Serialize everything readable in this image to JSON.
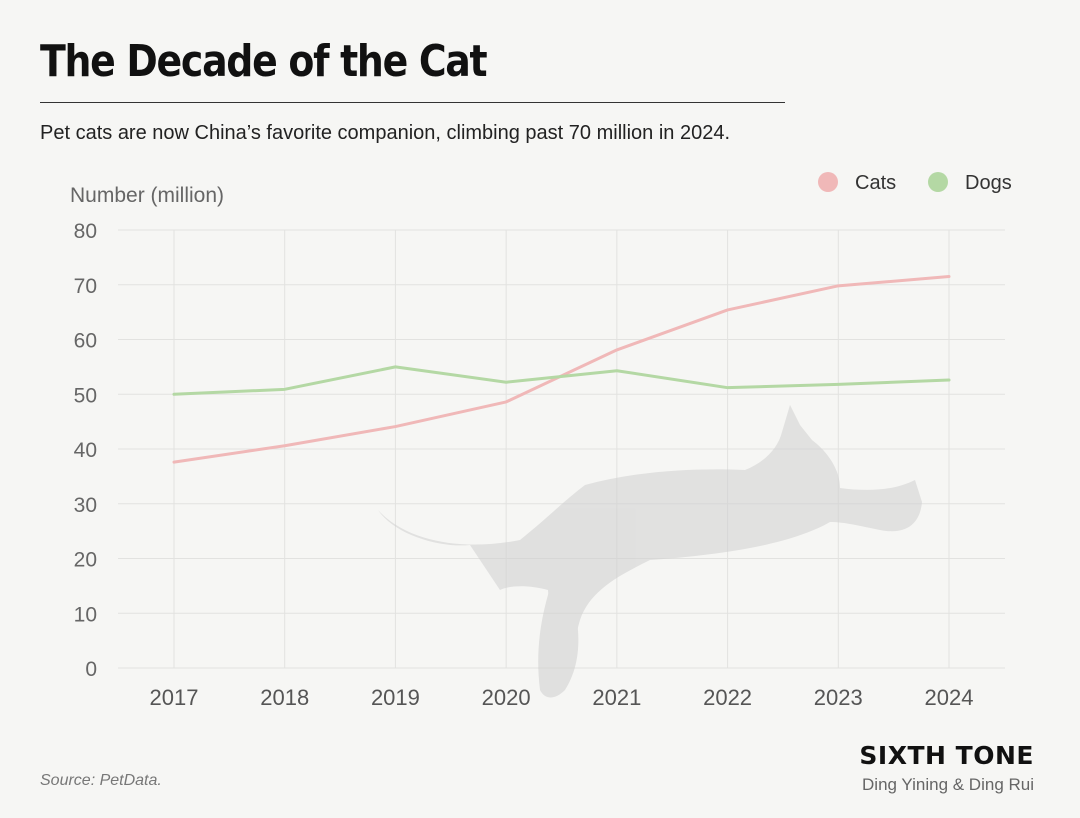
{
  "header": {
    "title": "The Decade of the Cat",
    "subtitle": "Pet cats are now China’s favorite companion, climbing past 70 million in 2024."
  },
  "footer": {
    "source": "Source: PetData.",
    "brand": "SIXTH TONE",
    "credit": "Ding Yining & Ding Rui"
  },
  "colors": {
    "cats": "#f0b8b8",
    "dogs": "#b4d8a4",
    "grid": "#e2e2e0",
    "axis_text": "#666666"
  },
  "chart_data": {
    "type": "line",
    "title": "The Decade of the Cat",
    "ylabel": "Number (million)",
    "xlabel": "",
    "x": [
      "2017",
      "2018",
      "2019",
      "2020",
      "2021",
      "2022",
      "2023",
      "2024"
    ],
    "ylim": [
      0,
      80
    ],
    "yticks": [
      0,
      10,
      20,
      30,
      40,
      50,
      60,
      70,
      80
    ],
    "grid": true,
    "legend_position": "top-right",
    "series": [
      {
        "name": "Cats",
        "values": [
          37.6,
          40.6,
          44.1,
          48.6,
          58.1,
          65.4,
          69.8,
          71.5
        ]
      },
      {
        "name": "Dogs",
        "values": [
          50.0,
          50.9,
          55.0,
          52.2,
          54.3,
          51.2,
          51.8,
          52.6
        ]
      }
    ]
  }
}
